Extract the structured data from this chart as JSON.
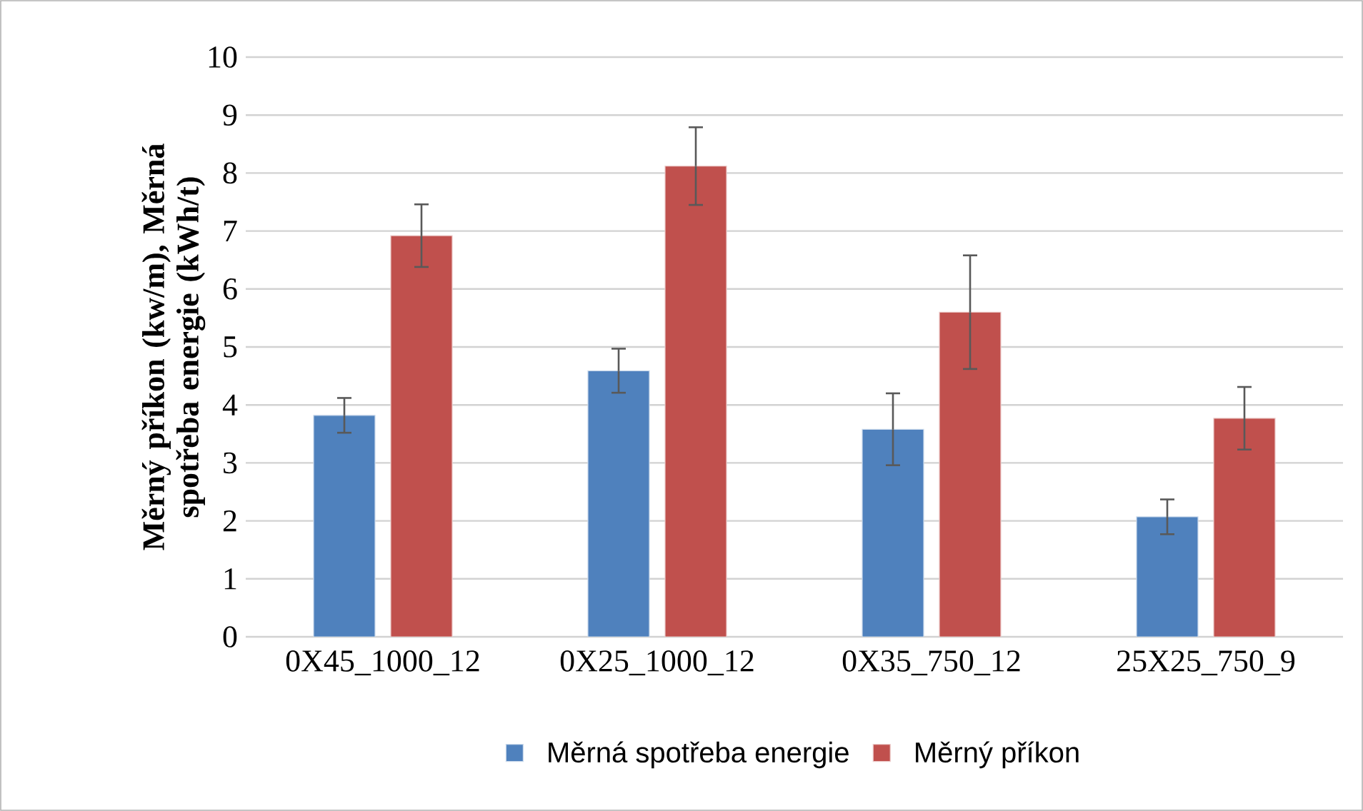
{
  "chart_data": {
    "type": "bar",
    "ylabel": "Měrný příkon (kw/m), Měrná spotřeba energie (kWh/t)",
    "categories": [
      "0X45_1000_12",
      "0X25_1000_12",
      "0X35_750_12",
      "25X25_750_9"
    ],
    "series": [
      {
        "name": "Měrná spotřeba energie",
        "color": "#4f81bd",
        "values": [
          3.82,
          4.59,
          3.58,
          2.07
        ],
        "errors": [
          0.3,
          0.38,
          0.62,
          0.3
        ]
      },
      {
        "name": "Měrný příkon",
        "color": "#c0504d",
        "values": [
          6.92,
          8.12,
          5.6,
          3.77
        ],
        "errors": [
          0.54,
          0.67,
          0.98,
          0.54
        ]
      }
    ],
    "ylim": [
      0,
      10
    ],
    "yticks": [
      0,
      1,
      2,
      3,
      4,
      5,
      6,
      7,
      8,
      9,
      10
    ],
    "grid": "y",
    "legend": "bottom"
  }
}
